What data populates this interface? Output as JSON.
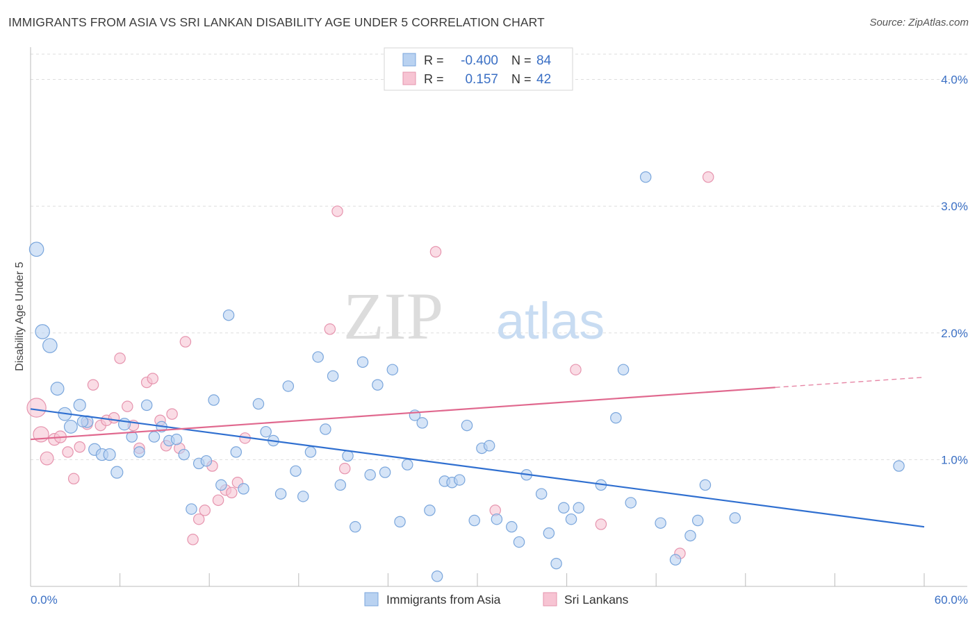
{
  "title": "IMMIGRANTS FROM ASIA VS SRI LANKAN DISABILITY AGE UNDER 5 CORRELATION CHART",
  "source": "Source: ZipAtlas.com",
  "watermark": {
    "zip": "ZIP",
    "atlas": "atlas"
  },
  "colors": {
    "blue_fill": "#b9d2f1",
    "blue_stroke": "#7aa6dc",
    "blue_line": "#2f6fd0",
    "pink_fill": "#f7c4d3",
    "pink_stroke": "#e694ae",
    "pink_line": "#e0688e",
    "axis_text": "#3a6fc4",
    "grid": "#dddddd"
  },
  "legend": {
    "rows": [
      {
        "r_label": "R =",
        "r_value": "-0.400",
        "n_label": "N =",
        "n_value": "84"
      },
      {
        "r_label": "R =",
        "r_value": "0.157",
        "n_label": "N =",
        "n_value": "42"
      }
    ]
  },
  "bottom_legend": [
    "Immigrants from Asia",
    "Sri Lankans"
  ],
  "chart_data": {
    "type": "scatter",
    "xlabel": "",
    "ylabel": "Disability Age Under 5",
    "xlim": [
      0,
      60
    ],
    "ylim": [
      0,
      4.2
    ],
    "x_tick_labels": {
      "min": "0.0%",
      "max": "60.0%"
    },
    "y_ticks": [
      1.0,
      2.0,
      3.0,
      4.0
    ],
    "y_tick_labels": [
      "1.0%",
      "2.0%",
      "3.0%",
      "4.0%"
    ],
    "grid": true,
    "series": [
      {
        "name": "Immigrants from Asia",
        "color": "#7aa6dc",
        "trend": {
          "x": [
            0,
            60
          ],
          "y": [
            1.4,
            0.47
          ]
        },
        "points": [
          [
            0.4,
            2.66,
            1.2
          ],
          [
            0.8,
            2.01,
            1.2
          ],
          [
            1.3,
            1.9,
            1.2
          ],
          [
            1.8,
            1.56,
            1.1
          ],
          [
            2.3,
            1.36,
            1.1
          ],
          [
            2.7,
            1.26,
            1.1
          ],
          [
            3.3,
            1.43,
            1.0
          ],
          [
            3.8,
            1.3,
            1.0
          ],
          [
            4.3,
            1.08,
            1.0
          ],
          [
            4.8,
            1.04,
            1.0
          ],
          [
            5.3,
            1.04,
            1.0
          ],
          [
            5.8,
            0.9,
            1.0
          ],
          [
            6.3,
            1.28,
            1.0
          ],
          [
            6.8,
            1.18,
            0.9
          ],
          [
            7.3,
            1.06,
            0.9
          ],
          [
            7.8,
            1.43,
            0.9
          ],
          [
            8.3,
            1.18,
            0.9
          ],
          [
            8.8,
            1.26,
            0.9
          ],
          [
            9.3,
            1.15,
            0.9
          ],
          [
            9.8,
            1.16,
            0.9
          ],
          [
            10.3,
            1.04,
            0.9
          ],
          [
            10.8,
            0.61,
            0.9
          ],
          [
            11.3,
            0.97,
            0.9
          ],
          [
            11.8,
            0.99,
            0.9
          ],
          [
            12.3,
            1.47,
            0.9
          ],
          [
            12.8,
            0.8,
            0.9
          ],
          [
            13.3,
            2.14,
            0.9
          ],
          [
            13.8,
            1.06,
            0.9
          ],
          [
            14.3,
            0.77,
            0.9
          ],
          [
            15.3,
            1.44,
            0.9
          ],
          [
            15.8,
            1.22,
            0.9
          ],
          [
            16.3,
            1.15,
            0.9
          ],
          [
            16.8,
            0.73,
            0.9
          ],
          [
            17.3,
            1.58,
            0.9
          ],
          [
            17.8,
            0.91,
            0.9
          ],
          [
            18.3,
            0.71,
            0.9
          ],
          [
            18.8,
            1.06,
            0.9
          ],
          [
            19.3,
            1.81,
            0.9
          ],
          [
            19.8,
            1.24,
            0.9
          ],
          [
            20.3,
            1.66,
            0.9
          ],
          [
            20.8,
            0.8,
            0.9
          ],
          [
            21.3,
            1.03,
            0.9
          ],
          [
            21.8,
            0.47,
            0.9
          ],
          [
            22.3,
            1.77,
            0.9
          ],
          [
            22.8,
            0.88,
            0.9
          ],
          [
            23.3,
            1.59,
            0.9
          ],
          [
            23.8,
            0.9,
            0.9
          ],
          [
            24.3,
            1.71,
            0.9
          ],
          [
            24.8,
            0.51,
            0.9
          ],
          [
            25.3,
            0.96,
            0.9
          ],
          [
            25.8,
            1.35,
            0.9
          ],
          [
            26.3,
            1.29,
            0.9
          ],
          [
            26.8,
            0.6,
            0.9
          ],
          [
            27.3,
            0.08,
            0.9
          ],
          [
            27.8,
            0.83,
            0.9
          ],
          [
            28.3,
            0.82,
            0.9
          ],
          [
            28.8,
            0.84,
            0.9
          ],
          [
            29.3,
            1.27,
            0.9
          ],
          [
            29.8,
            0.52,
            0.9
          ],
          [
            30.3,
            1.09,
            0.9
          ],
          [
            30.8,
            1.11,
            0.9
          ],
          [
            31.3,
            0.53,
            0.9
          ],
          [
            32.3,
            0.47,
            0.9
          ],
          [
            32.8,
            0.35,
            0.9
          ],
          [
            33.3,
            0.88,
            0.9
          ],
          [
            34.3,
            0.73,
            0.9
          ],
          [
            34.8,
            0.42,
            0.9
          ],
          [
            35.3,
            0.18,
            0.9
          ],
          [
            35.8,
            0.62,
            0.9
          ],
          [
            36.3,
            0.53,
            0.9
          ],
          [
            36.8,
            0.62,
            0.9
          ],
          [
            38.3,
            0.8,
            0.9
          ],
          [
            39.3,
            1.33,
            0.9
          ],
          [
            39.8,
            1.71,
            0.9
          ],
          [
            40.3,
            0.66,
            0.9
          ],
          [
            41.3,
            3.23,
            0.9
          ],
          [
            42.3,
            0.5,
            0.9
          ],
          [
            43.3,
            0.21,
            0.9
          ],
          [
            44.3,
            0.4,
            0.9
          ],
          [
            44.8,
            0.52,
            0.9
          ],
          [
            45.3,
            0.8,
            0.9
          ],
          [
            47.3,
            0.54,
            0.9
          ],
          [
            58.3,
            0.95,
            0.9
          ],
          [
            3.5,
            1.3,
            0.9
          ]
        ]
      },
      {
        "name": "Sri Lankans",
        "color": "#e694ae",
        "trend": {
          "x": [
            0,
            50
          ],
          "y": [
            1.16,
            1.57
          ],
          "dash_to": [
            60,
            1.65
          ]
        },
        "points": [
          [
            0.4,
            1.41,
            1.6
          ],
          [
            0.7,
            1.2,
            1.3
          ],
          [
            1.1,
            1.01,
            1.1
          ],
          [
            1.6,
            1.16,
            1.0
          ],
          [
            2.0,
            1.18,
            1.0
          ],
          [
            2.5,
            1.06,
            0.9
          ],
          [
            2.9,
            0.85,
            0.9
          ],
          [
            3.3,
            1.1,
            0.9
          ],
          [
            3.8,
            1.28,
            0.9
          ],
          [
            4.2,
            1.59,
            0.9
          ],
          [
            4.7,
            1.27,
            0.9
          ],
          [
            5.1,
            1.31,
            0.9
          ],
          [
            5.6,
            1.33,
            0.9
          ],
          [
            6.0,
            1.8,
            0.9
          ],
          [
            6.5,
            1.42,
            0.9
          ],
          [
            6.9,
            1.27,
            0.9
          ],
          [
            7.3,
            1.09,
            0.9
          ],
          [
            7.8,
            1.61,
            0.9
          ],
          [
            8.2,
            1.64,
            0.9
          ],
          [
            8.7,
            1.31,
            0.9
          ],
          [
            9.1,
            1.11,
            0.9
          ],
          [
            9.5,
            1.36,
            0.9
          ],
          [
            10.0,
            1.09,
            0.9
          ],
          [
            10.4,
            1.93,
            0.9
          ],
          [
            10.9,
            0.37,
            0.9
          ],
          [
            11.3,
            0.53,
            0.9
          ],
          [
            11.7,
            0.6,
            0.9
          ],
          [
            12.2,
            0.95,
            0.9
          ],
          [
            12.6,
            0.68,
            0.9
          ],
          [
            13.1,
            0.76,
            0.9
          ],
          [
            13.5,
            0.74,
            0.9
          ],
          [
            13.9,
            0.82,
            0.9
          ],
          [
            14.4,
            1.17,
            0.9
          ],
          [
            20.1,
            2.03,
            0.9
          ],
          [
            20.6,
            2.96,
            0.9
          ],
          [
            21.1,
            0.93,
            0.9
          ],
          [
            27.2,
            2.64,
            0.9
          ],
          [
            31.2,
            0.6,
            0.9
          ],
          [
            36.6,
            1.71,
            0.9
          ],
          [
            38.3,
            0.49,
            0.9
          ],
          [
            43.6,
            0.26,
            0.9
          ],
          [
            45.5,
            3.23,
            0.9
          ]
        ]
      }
    ]
  }
}
